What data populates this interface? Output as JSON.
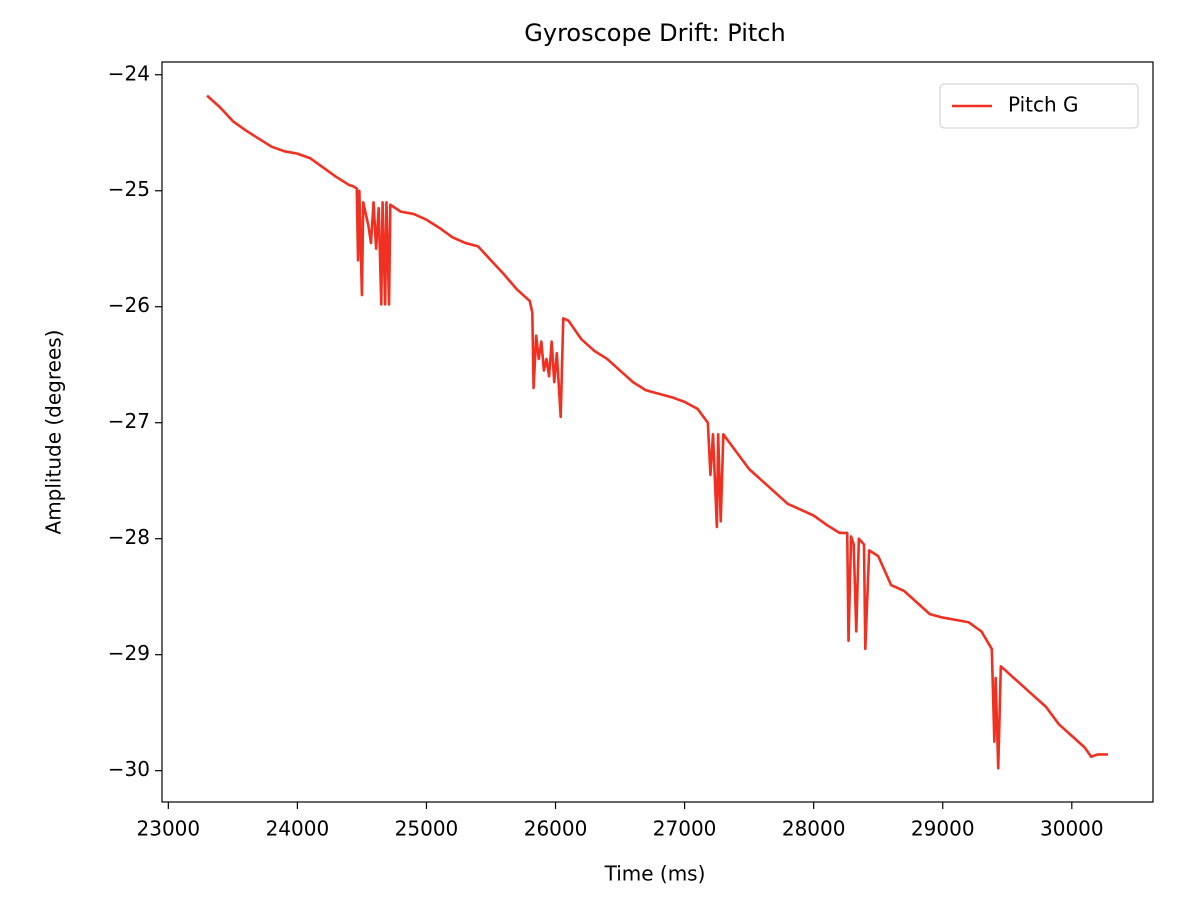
{
  "chart_data": {
    "type": "line",
    "title": "Gyroscope Drift: Pitch",
    "x_label": "Time (ms)",
    "y_label": "Amplitude (degrees)",
    "x": [
      23300,
      23400,
      23500,
      23600,
      23700,
      23800,
      23900,
      24000,
      24100,
      24200,
      24300,
      24400,
      24430,
      24460,
      24470,
      24480,
      24500,
      24510,
      24550,
      24570,
      24590,
      24610,
      24630,
      24650,
      24660,
      24680,
      24690,
      24710,
      24720,
      24800,
      24900,
      25000,
      25100,
      25200,
      25300,
      25400,
      25500,
      25600,
      25700,
      25800,
      25820,
      25830,
      25850,
      25870,
      25890,
      25910,
      25930,
      25950,
      25970,
      25990,
      26010,
      26040,
      26060,
      26100,
      26200,
      26300,
      26400,
      26500,
      26600,
      26700,
      26800,
      26900,
      27000,
      27100,
      27180,
      27200,
      27220,
      27250,
      27260,
      27280,
      27300,
      27400,
      27500,
      27600,
      27700,
      27800,
      27900,
      28000,
      28100,
      28200,
      28260,
      28270,
      28290,
      28310,
      28330,
      28350,
      28390,
      28400,
      28430,
      28500,
      28600,
      28700,
      28800,
      28900,
      29000,
      29100,
      29200,
      29300,
      29380,
      29400,
      29410,
      29430,
      29450,
      29500,
      29600,
      29700,
      29800,
      29900,
      30000,
      30100,
      30150,
      30200,
      30280
    ],
    "series": [
      {
        "name": "Pitch G",
        "color": "#f03021",
        "values": [
          -24.18,
          -24.28,
          -24.4,
          -24.48,
          -24.55,
          -24.62,
          -24.66,
          -24.68,
          -24.72,
          -24.8,
          -24.88,
          -24.95,
          -24.96,
          -24.98,
          -25.6,
          -25.0,
          -25.9,
          -25.1,
          -25.3,
          -25.45,
          -25.1,
          -25.5,
          -25.15,
          -25.98,
          -25.1,
          -25.98,
          -25.1,
          -25.98,
          -25.12,
          -25.18,
          -25.2,
          -25.25,
          -25.32,
          -25.4,
          -25.45,
          -25.48,
          -25.6,
          -25.72,
          -25.85,
          -25.95,
          -26.05,
          -26.7,
          -26.25,
          -26.45,
          -26.3,
          -26.55,
          -26.45,
          -26.6,
          -26.3,
          -26.65,
          -26.4,
          -26.95,
          -26.1,
          -26.12,
          -26.28,
          -26.38,
          -26.45,
          -26.55,
          -26.65,
          -26.72,
          -26.75,
          -26.78,
          -26.82,
          -26.88,
          -27.0,
          -27.45,
          -27.1,
          -27.9,
          -27.1,
          -27.85,
          -27.1,
          -27.25,
          -27.4,
          -27.5,
          -27.6,
          -27.7,
          -27.75,
          -27.8,
          -27.88,
          -27.95,
          -27.95,
          -28.88,
          -27.98,
          -28.05,
          -28.8,
          -28.0,
          -28.05,
          -28.95,
          -28.1,
          -28.15,
          -28.4,
          -28.45,
          -28.55,
          -28.65,
          -28.68,
          -28.7,
          -28.72,
          -28.8,
          -28.95,
          -29.75,
          -29.2,
          -29.98,
          -29.1,
          -29.15,
          -29.25,
          -29.35,
          -29.45,
          -29.6,
          -29.7,
          -29.8,
          -29.88,
          -29.86,
          -29.86
        ]
      }
    ],
    "xlim": [
      22951,
      30629
    ],
    "ylim": [
      -30.27,
      -23.89
    ],
    "xticks": [
      23000,
      24000,
      25000,
      26000,
      27000,
      28000,
      29000,
      30000
    ],
    "yticks": [
      {
        "value": -24,
        "label": "−24"
      },
      {
        "value": -25,
        "label": "−25"
      },
      {
        "value": -26,
        "label": "−26"
      },
      {
        "value": -27,
        "label": "−27"
      },
      {
        "value": -28,
        "label": "−28"
      },
      {
        "value": -29,
        "label": "−29"
      },
      {
        "value": -30,
        "label": "−30"
      }
    ],
    "legend": "upper right",
    "grid": false
  }
}
